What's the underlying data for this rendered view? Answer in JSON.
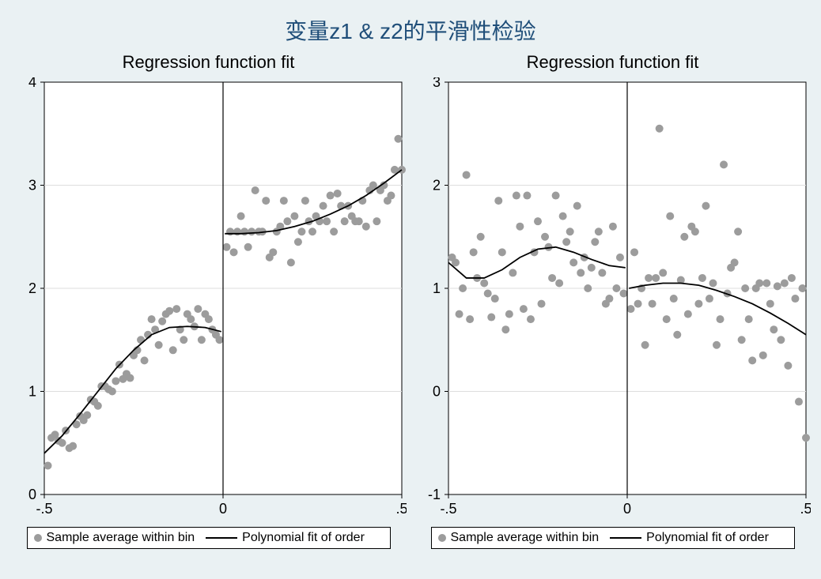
{
  "main_title": "变量z1 & z2的平滑性检验",
  "background_color": "#eaf1f3",
  "plot_bg": "#ffffff",
  "grid_color": "#dedede",
  "axis_color": "#000000",
  "marker_color": "#9c9c9c",
  "line_color": "#000000",
  "title_color": "#1f4e79",
  "main_title_fontsize": 28,
  "panel_title_fontsize": 22,
  "axis_label_fontsize": 18,
  "legend_fontsize": 16,
  "marker_radius": 5,
  "line_width": 1.8,
  "panels": [
    {
      "title": "Regression function fit",
      "xlim": [
        -0.5,
        0.5
      ],
      "ylim": [
        0,
        4
      ],
      "xticks": [
        -0.5,
        0,
        0.5
      ],
      "xtick_labels": [
        "-.5",
        "0",
        ".5"
      ],
      "yticks": [
        0,
        1,
        2,
        3,
        4
      ],
      "ytick_labels": [
        "0",
        "1",
        "2",
        "3",
        "4"
      ],
      "cutoff": 0,
      "legend": {
        "sample": "Sample average within bin",
        "fit": "Polynomial fit of order"
      },
      "scatter": [
        [
          -0.49,
          0.28
        ],
        [
          -0.48,
          0.55
        ],
        [
          -0.47,
          0.58
        ],
        [
          -0.46,
          0.52
        ],
        [
          -0.45,
          0.5
        ],
        [
          -0.44,
          0.62
        ],
        [
          -0.43,
          0.45
        ],
        [
          -0.42,
          0.47
        ],
        [
          -0.41,
          0.68
        ],
        [
          -0.4,
          0.76
        ],
        [
          -0.39,
          0.72
        ],
        [
          -0.38,
          0.77
        ],
        [
          -0.37,
          0.92
        ],
        [
          -0.36,
          0.9
        ],
        [
          -0.35,
          0.86
        ],
        [
          -0.34,
          1.05
        ],
        [
          -0.33,
          1.05
        ],
        [
          -0.32,
          1.02
        ],
        [
          -0.31,
          1.0
        ],
        [
          -0.3,
          1.1
        ],
        [
          -0.29,
          1.26
        ],
        [
          -0.28,
          1.12
        ],
        [
          -0.27,
          1.17
        ],
        [
          -0.26,
          1.13
        ],
        [
          -0.25,
          1.35
        ],
        [
          -0.24,
          1.4
        ],
        [
          -0.23,
          1.5
        ],
        [
          -0.22,
          1.3
        ],
        [
          -0.21,
          1.55
        ],
        [
          -0.2,
          1.7
        ],
        [
          -0.19,
          1.6
        ],
        [
          -0.18,
          1.45
        ],
        [
          -0.17,
          1.68
        ],
        [
          -0.16,
          1.75
        ],
        [
          -0.15,
          1.78
        ],
        [
          -0.14,
          1.4
        ],
        [
          -0.13,
          1.8
        ],
        [
          -0.12,
          1.6
        ],
        [
          -0.11,
          1.5
        ],
        [
          -0.1,
          1.75
        ],
        [
          -0.09,
          1.7
        ],
        [
          -0.08,
          1.63
        ],
        [
          -0.07,
          1.8
        ],
        [
          -0.06,
          1.5
        ],
        [
          -0.05,
          1.75
        ],
        [
          -0.04,
          1.7
        ],
        [
          -0.03,
          1.6
        ],
        [
          -0.02,
          1.55
        ],
        [
          -0.01,
          1.5
        ],
        [
          0.01,
          2.4
        ],
        [
          0.02,
          2.55
        ],
        [
          0.03,
          2.35
        ],
        [
          0.04,
          2.55
        ],
        [
          0.05,
          2.7
        ],
        [
          0.06,
          2.55
        ],
        [
          0.07,
          2.4
        ],
        [
          0.08,
          2.55
        ],
        [
          0.09,
          2.95
        ],
        [
          0.1,
          2.55
        ],
        [
          0.11,
          2.55
        ],
        [
          0.12,
          2.85
        ],
        [
          0.13,
          2.3
        ],
        [
          0.14,
          2.35
        ],
        [
          0.15,
          2.55
        ],
        [
          0.16,
          2.6
        ],
        [
          0.17,
          2.85
        ],
        [
          0.18,
          2.65
        ],
        [
          0.19,
          2.25
        ],
        [
          0.2,
          2.7
        ],
        [
          0.21,
          2.45
        ],
        [
          0.22,
          2.55
        ],
        [
          0.23,
          2.85
        ],
        [
          0.24,
          2.65
        ],
        [
          0.25,
          2.55
        ],
        [
          0.26,
          2.7
        ],
        [
          0.27,
          2.65
        ],
        [
          0.28,
          2.8
        ],
        [
          0.29,
          2.65
        ],
        [
          0.3,
          2.9
        ],
        [
          0.31,
          2.55
        ],
        [
          0.32,
          2.92
        ],
        [
          0.33,
          2.8
        ],
        [
          0.34,
          2.65
        ],
        [
          0.35,
          2.8
        ],
        [
          0.36,
          2.7
        ],
        [
          0.37,
          2.65
        ],
        [
          0.38,
          2.65
        ],
        [
          0.39,
          2.85
        ],
        [
          0.4,
          2.6
        ],
        [
          0.41,
          2.95
        ],
        [
          0.42,
          3.0
        ],
        [
          0.43,
          2.65
        ],
        [
          0.44,
          2.95
        ],
        [
          0.45,
          3.0
        ],
        [
          0.46,
          2.85
        ],
        [
          0.47,
          2.9
        ],
        [
          0.48,
          3.15
        ],
        [
          0.49,
          3.45
        ],
        [
          0.5,
          3.15
        ]
      ],
      "fit_left": [
        [
          -0.5,
          0.4
        ],
        [
          -0.45,
          0.57
        ],
        [
          -0.4,
          0.78
        ],
        [
          -0.35,
          1.0
        ],
        [
          -0.3,
          1.22
        ],
        [
          -0.25,
          1.4
        ],
        [
          -0.2,
          1.55
        ],
        [
          -0.15,
          1.62
        ],
        [
          -0.1,
          1.63
        ],
        [
          -0.05,
          1.62
        ],
        [
          -0.005,
          1.58
        ]
      ],
      "fit_right": [
        [
          0.005,
          2.53
        ],
        [
          0.05,
          2.53
        ],
        [
          0.1,
          2.54
        ],
        [
          0.15,
          2.56
        ],
        [
          0.2,
          2.6
        ],
        [
          0.25,
          2.65
        ],
        [
          0.3,
          2.72
        ],
        [
          0.35,
          2.8
        ],
        [
          0.4,
          2.9
        ],
        [
          0.45,
          3.02
        ],
        [
          0.5,
          3.15
        ]
      ]
    },
    {
      "title": "Regression function fit",
      "xlim": [
        -0.5,
        0.5
      ],
      "ylim": [
        -1,
        3
      ],
      "xticks": [
        -0.5,
        0,
        0.5
      ],
      "xtick_labels": [
        "-.5",
        "0",
        ".5"
      ],
      "yticks": [
        -1,
        0,
        1,
        2,
        3
      ],
      "ytick_labels": [
        "-1",
        "0",
        "1",
        "2",
        "3"
      ],
      "cutoff": 0,
      "legend": {
        "sample": "Sample average within bin",
        "fit": "Polynomial fit of order"
      },
      "scatter": [
        [
          -0.49,
          1.3
        ],
        [
          -0.48,
          1.25
        ],
        [
          -0.47,
          0.75
        ],
        [
          -0.46,
          1.0
        ],
        [
          -0.45,
          2.1
        ],
        [
          -0.44,
          0.7
        ],
        [
          -0.43,
          1.35
        ],
        [
          -0.42,
          1.1
        ],
        [
          -0.41,
          1.5
        ],
        [
          -0.4,
          1.05
        ],
        [
          -0.39,
          0.95
        ],
        [
          -0.38,
          0.72
        ],
        [
          -0.37,
          0.9
        ],
        [
          -0.36,
          1.85
        ],
        [
          -0.35,
          1.35
        ],
        [
          -0.34,
          0.6
        ],
        [
          -0.33,
          0.75
        ],
        [
          -0.32,
          1.15
        ],
        [
          -0.31,
          1.9
        ],
        [
          -0.3,
          1.6
        ],
        [
          -0.29,
          0.8
        ],
        [
          -0.28,
          1.9
        ],
        [
          -0.27,
          0.7
        ],
        [
          -0.26,
          1.35
        ],
        [
          -0.25,
          1.65
        ],
        [
          -0.24,
          0.85
        ],
        [
          -0.23,
          1.5
        ],
        [
          -0.22,
          1.4
        ],
        [
          -0.21,
          1.1
        ],
        [
          -0.2,
          1.9
        ],
        [
          -0.19,
          1.05
        ],
        [
          -0.18,
          1.7
        ],
        [
          -0.17,
          1.45
        ],
        [
          -0.16,
          1.55
        ],
        [
          -0.15,
          1.25
        ],
        [
          -0.14,
          1.8
        ],
        [
          -0.13,
          1.15
        ],
        [
          -0.12,
          1.3
        ],
        [
          -0.11,
          1.0
        ],
        [
          -0.1,
          1.2
        ],
        [
          -0.09,
          1.45
        ],
        [
          -0.08,
          1.55
        ],
        [
          -0.07,
          1.15
        ],
        [
          -0.06,
          0.85
        ],
        [
          -0.05,
          0.9
        ],
        [
          -0.04,
          1.6
        ],
        [
          -0.03,
          1.0
        ],
        [
          -0.02,
          1.3
        ],
        [
          -0.01,
          0.95
        ],
        [
          0.01,
          0.8
        ],
        [
          0.02,
          1.35
        ],
        [
          0.03,
          0.85
        ],
        [
          0.04,
          1.0
        ],
        [
          0.05,
          0.45
        ],
        [
          0.06,
          1.1
        ],
        [
          0.07,
          0.85
        ],
        [
          0.08,
          1.1
        ],
        [
          0.09,
          2.55
        ],
        [
          0.1,
          1.15
        ],
        [
          0.11,
          0.7
        ],
        [
          0.12,
          1.7
        ],
        [
          0.13,
          0.9
        ],
        [
          0.14,
          0.55
        ],
        [
          0.15,
          1.08
        ],
        [
          0.16,
          1.5
        ],
        [
          0.17,
          0.75
        ],
        [
          0.18,
          1.6
        ],
        [
          0.19,
          1.55
        ],
        [
          0.2,
          0.85
        ],
        [
          0.21,
          1.1
        ],
        [
          0.22,
          1.8
        ],
        [
          0.23,
          0.9
        ],
        [
          0.24,
          1.05
        ],
        [
          0.25,
          0.45
        ],
        [
          0.26,
          0.7
        ],
        [
          0.27,
          2.2
        ],
        [
          0.28,
          0.95
        ],
        [
          0.29,
          1.2
        ],
        [
          0.3,
          1.25
        ],
        [
          0.31,
          1.55
        ],
        [
          0.32,
          0.5
        ],
        [
          0.33,
          1.0
        ],
        [
          0.34,
          0.7
        ],
        [
          0.35,
          0.3
        ],
        [
          0.36,
          1.0
        ],
        [
          0.37,
          1.05
        ],
        [
          0.38,
          0.35
        ],
        [
          0.39,
          1.05
        ],
        [
          0.4,
          0.85
        ],
        [
          0.41,
          0.6
        ],
        [
          0.42,
          1.02
        ],
        [
          0.43,
          0.5
        ],
        [
          0.44,
          1.05
        ],
        [
          0.45,
          0.25
        ],
        [
          0.46,
          1.1
        ],
        [
          0.47,
          0.9
        ],
        [
          0.48,
          -0.1
        ],
        [
          0.49,
          1.0
        ],
        [
          0.5,
          -0.45
        ]
      ],
      "fit_left": [
        [
          -0.5,
          1.25
        ],
        [
          -0.45,
          1.1
        ],
        [
          -0.4,
          1.1
        ],
        [
          -0.35,
          1.18
        ],
        [
          -0.3,
          1.3
        ],
        [
          -0.25,
          1.38
        ],
        [
          -0.2,
          1.4
        ],
        [
          -0.15,
          1.35
        ],
        [
          -0.1,
          1.28
        ],
        [
          -0.05,
          1.22
        ],
        [
          -0.005,
          1.2
        ]
      ],
      "fit_right": [
        [
          0.005,
          1.0
        ],
        [
          0.05,
          1.03
        ],
        [
          0.1,
          1.05
        ],
        [
          0.15,
          1.05
        ],
        [
          0.2,
          1.03
        ],
        [
          0.25,
          0.98
        ],
        [
          0.3,
          0.92
        ],
        [
          0.35,
          0.85
        ],
        [
          0.4,
          0.76
        ],
        [
          0.45,
          0.66
        ],
        [
          0.5,
          0.55
        ]
      ]
    }
  ]
}
